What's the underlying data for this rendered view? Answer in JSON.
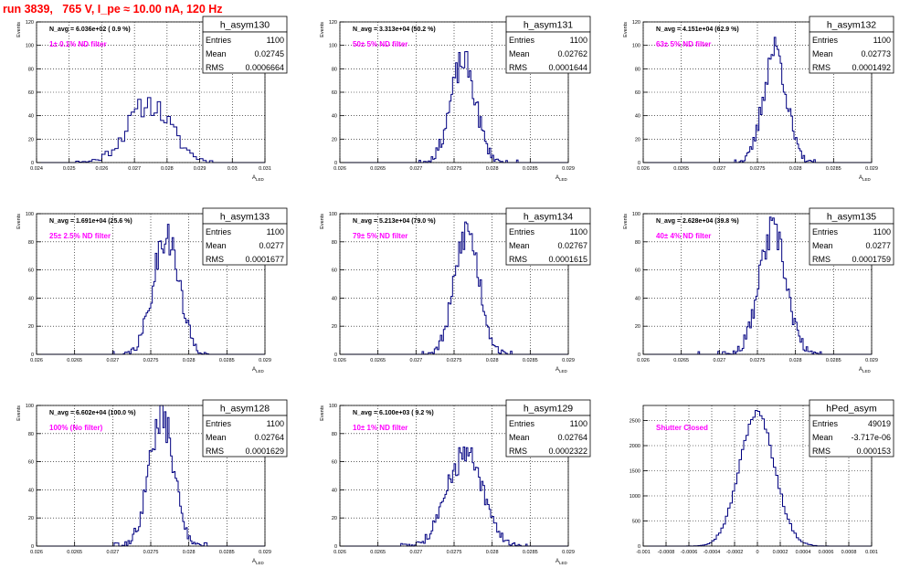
{
  "header": {
    "run_title": "run 3839,   765 V, I_pe ≈ 10.00 nA, 120 Hz"
  },
  "colors": {
    "histogram": "#000080",
    "annotation": "#ff00ff",
    "title": "#ff0000",
    "grid": "#000000"
  },
  "chart_data": [
    {
      "type": "bar",
      "name": "h_asym130",
      "navg": "N_avg = 6.036e+02 ( 0.9 %)",
      "filter": "1± 0.1% ND filter",
      "stats": {
        "Entries": "1100",
        "Mean": "0.02745",
        "RMS": "0.0006664"
      },
      "xlabel": "A_{LED}",
      "ylabel": "Events",
      "xlim": [
        0.024,
        0.031
      ],
      "ylim": [
        0,
        120
      ],
      "xticks": [
        0.024,
        0.025,
        0.026,
        0.027,
        0.028,
        0.029,
        0.03,
        0.031
      ],
      "xtick_labels": [
        "0.024",
        "0.025",
        "0.026",
        "0.027",
        "0.028",
        "0.029",
        "0.03",
        "0.031"
      ],
      "yticks": [
        0,
        20,
        40,
        60,
        80,
        100,
        120
      ],
      "dist": {
        "mean": 0.02745,
        "rms": 0.0006664,
        "peak": 50,
        "bin": 0.0001,
        "seed": 11
      }
    },
    {
      "type": "bar",
      "name": "h_asym131",
      "navg": "N_avg = 3.313e+04 (50.2 %)",
      "filter": "50± 5% ND filter",
      "stats": {
        "Entries": "1100",
        "Mean": "0.02762",
        "RMS": "0.0001644"
      },
      "xlabel": "A_{LED}",
      "ylabel": "Events",
      "xlim": [
        0.026,
        0.029
      ],
      "ylim": [
        0,
        120
      ],
      "xticks": [
        0.026,
        0.0265,
        0.027,
        0.0275,
        0.028,
        0.0285,
        0.029
      ],
      "xtick_labels": [
        "0.026",
        "0.0265",
        "0.027",
        "0.0275",
        "0.028",
        "0.0285",
        "0.029"
      ],
      "yticks": [
        0,
        20,
        40,
        60,
        80,
        100,
        120
      ],
      "dist": {
        "mean": 0.02762,
        "rms": 0.0001644,
        "peak": 86,
        "bin": 2e-05,
        "seed": 23
      }
    },
    {
      "type": "bar",
      "name": "h_asym132",
      "navg": "N_avg = 4.151e+04 (62.9 %)",
      "filter": "63± 5% ND filter",
      "stats": {
        "Entries": "1100",
        "Mean": "0.02773",
        "RMS": "0.0001492"
      },
      "xlabel": "A_{LED}",
      "ylabel": "Events",
      "xlim": [
        0.026,
        0.029
      ],
      "ylim": [
        0,
        120
      ],
      "xticks": [
        0.026,
        0.0265,
        0.027,
        0.0275,
        0.028,
        0.0285,
        0.029
      ],
      "xtick_labels": [
        "0.026",
        "0.0265",
        "0.027",
        "0.0275",
        "0.028",
        "0.0285",
        "0.029"
      ],
      "yticks": [
        0,
        20,
        40,
        60,
        80,
        100,
        120
      ],
      "dist": {
        "mean": 0.02773,
        "rms": 0.0001492,
        "peak": 97,
        "bin": 2e-05,
        "seed": 37
      }
    },
    {
      "type": "bar",
      "name": "h_asym133",
      "navg": "N_avg = 1.691e+04 (25.6 %)",
      "filter": "25± 2.5% ND filter",
      "stats": {
        "Entries": "1100",
        "Mean": "0.0277",
        "RMS": "0.0001677"
      },
      "xlabel": "A_{LED}",
      "ylabel": "Events",
      "xlim": [
        0.026,
        0.029
      ],
      "ylim": [
        0,
        100
      ],
      "xticks": [
        0.026,
        0.0265,
        0.027,
        0.0275,
        0.028,
        0.0285,
        0.029
      ],
      "xtick_labels": [
        "0.026",
        "0.0265",
        "0.027",
        "0.0275",
        "0.028",
        "0.0285",
        "0.029"
      ],
      "yticks": [
        0,
        20,
        40,
        60,
        80,
        100
      ],
      "dist": {
        "mean": 0.0277,
        "rms": 0.0001677,
        "peak": 86,
        "bin": 2e-05,
        "seed": 41
      }
    },
    {
      "type": "bar",
      "name": "h_asym134",
      "navg": "N_avg = 5.213e+04 (79.0 %)",
      "filter": "79± 5% ND filter",
      "stats": {
        "Entries": "1100",
        "Mean": "0.02767",
        "RMS": "0.0001615"
      },
      "xlabel": "A_{LED}",
      "ylabel": "Events",
      "xlim": [
        0.026,
        0.029
      ],
      "ylim": [
        0,
        100
      ],
      "xticks": [
        0.026,
        0.0265,
        0.027,
        0.0275,
        0.028,
        0.0285,
        0.029
      ],
      "xtick_labels": [
        "0.026",
        "0.0265",
        "0.027",
        "0.0275",
        "0.028",
        "0.0285",
        "0.029"
      ],
      "yticks": [
        0,
        20,
        40,
        60,
        80,
        100
      ],
      "dist": {
        "mean": 0.02767,
        "rms": 0.0001615,
        "peak": 88,
        "bin": 2e-05,
        "seed": 53
      }
    },
    {
      "type": "bar",
      "name": "h_asym135",
      "navg": "N_avg = 2.628e+04 (39.8 %)",
      "filter": "40± 4% ND filter",
      "stats": {
        "Entries": "1100",
        "Mean": "0.0277",
        "RMS": "0.0001759"
      },
      "xlabel": "A_{LED}",
      "ylabel": "Events",
      "xlim": [
        0.026,
        0.029
      ],
      "ylim": [
        0,
        100
      ],
      "xticks": [
        0.026,
        0.0265,
        0.027,
        0.0275,
        0.028,
        0.0285,
        0.029
      ],
      "xtick_labels": [
        "0.026",
        "0.0265",
        "0.027",
        "0.0275",
        "0.028",
        "0.0285",
        "0.029"
      ],
      "yticks": [
        0,
        20,
        40,
        60,
        80,
        100
      ],
      "dist": {
        "mean": 0.0277,
        "rms": 0.0001759,
        "peak": 87,
        "bin": 2e-05,
        "seed": 67
      }
    },
    {
      "type": "bar",
      "name": "h_asym128",
      "navg": "N_avg = 6.602e+04 (100.0 %)",
      "filter": "100% (No filter)",
      "stats": {
        "Entries": "1100",
        "Mean": "0.02764",
        "RMS": "0.0001629"
      },
      "xlabel": "A_{LED}",
      "ylabel": "Events",
      "xlim": [
        0.026,
        0.029
      ],
      "ylim": [
        0,
        100
      ],
      "xticks": [
        0.026,
        0.0265,
        0.027,
        0.0275,
        0.028,
        0.0285,
        0.029
      ],
      "xtick_labels": [
        "0.026",
        "0.0265",
        "0.027",
        "0.0275",
        "0.028",
        "0.0285",
        "0.029"
      ],
      "yticks": [
        0,
        20,
        40,
        60,
        80,
        100
      ],
      "dist": {
        "mean": 0.02764,
        "rms": 0.0001629,
        "peak": 92,
        "bin": 2e-05,
        "seed": 79
      }
    },
    {
      "type": "bar",
      "name": "h_asym129",
      "navg": "N_avg = 6.100e+03 ( 9.2 %)",
      "filter": "10± 1% ND filter",
      "stats": {
        "Entries": "1100",
        "Mean": "0.02764",
        "RMS": "0.0002322"
      },
      "xlabel": "A_{LED}",
      "ylabel": "Events",
      "xlim": [
        0.026,
        0.029
      ],
      "ylim": [
        0,
        100
      ],
      "xticks": [
        0.026,
        0.0265,
        0.027,
        0.0275,
        0.028,
        0.0285,
        0.029
      ],
      "xtick_labels": [
        "0.026",
        "0.0265",
        "0.027",
        "0.0275",
        "0.028",
        "0.0285",
        "0.029"
      ],
      "yticks": [
        0,
        20,
        40,
        60,
        80,
        100
      ],
      "dist": {
        "mean": 0.02764,
        "rms": 0.0002322,
        "peak": 65,
        "bin": 2e-05,
        "seed": 83
      }
    },
    {
      "type": "bar",
      "name": "hPed_asym",
      "navg": "",
      "filter": "Shutter Closed",
      "stats": {
        "Entries": "49019",
        "Mean": "-3.717e-06",
        "RMS": "0.000153"
      },
      "xlabel": "",
      "ylabel": "",
      "xlim": [
        -0.001,
        0.001
      ],
      "ylim": [
        0,
        2800
      ],
      "xticks": [
        -0.001,
        -0.0008,
        -0.0006,
        -0.0004,
        -0.0002,
        0,
        0.0002,
        0.0004,
        0.0006,
        0.0008,
        0.001
      ],
      "xtick_labels": [
        "-0.001",
        "-0.0008",
        "-0.0006",
        "-0.0004",
        "-0.0002",
        "0",
        "0.0002",
        "0.0004",
        "0.0006",
        "0.0008",
        "0.001"
      ],
      "yticks": [
        0,
        500,
        1000,
        1500,
        2000,
        2500
      ],
      "dist": {
        "mean": -3.717e-06,
        "rms": 0.000153,
        "peak": 2650,
        "bin": 2e-05,
        "seed": 97
      }
    }
  ]
}
